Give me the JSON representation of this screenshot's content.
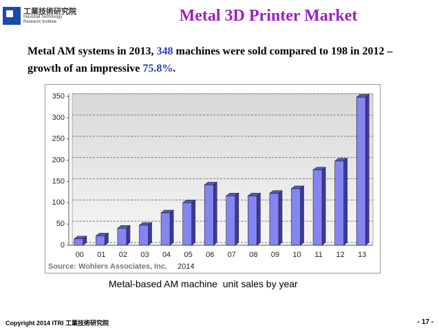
{
  "header": {
    "logo_cn": "工業技術研究院",
    "logo_en": [
      "Industrial Technology",
      "Research Institute"
    ],
    "title": "Metal 3D Printer Market"
  },
  "description": [
    "Metal AM systems in 2013,  ",
    "348",
    " machines were sold  compared to 198 in 2012 – growth of an impressive ",
    "75.8%",
    "."
  ],
  "chart_data": {
    "type": "bar",
    "categories": [
      "00",
      "01",
      "02",
      "03",
      "04",
      "05",
      "06",
      "07",
      "08",
      "09",
      "10",
      "11",
      "12",
      "13"
    ],
    "values": [
      15,
      22,
      40,
      47,
      76,
      100,
      142,
      116,
      116,
      122,
      133,
      177,
      198,
      348
    ],
    "color": "#8484f2",
    "ylim": [
      0,
      350
    ],
    "yticks": [
      0,
      50,
      100,
      150,
      200,
      250,
      300,
      350
    ],
    "grid": true,
    "source": "Source: Wohlers Associates, Inc.",
    "source_year": "2014",
    "caption": "Metal-based AM machine  unit sales by year"
  },
  "footer": {
    "copyright": "Copyright 2014 ITRI 工業技術研究院",
    "page": "- 17 -"
  }
}
